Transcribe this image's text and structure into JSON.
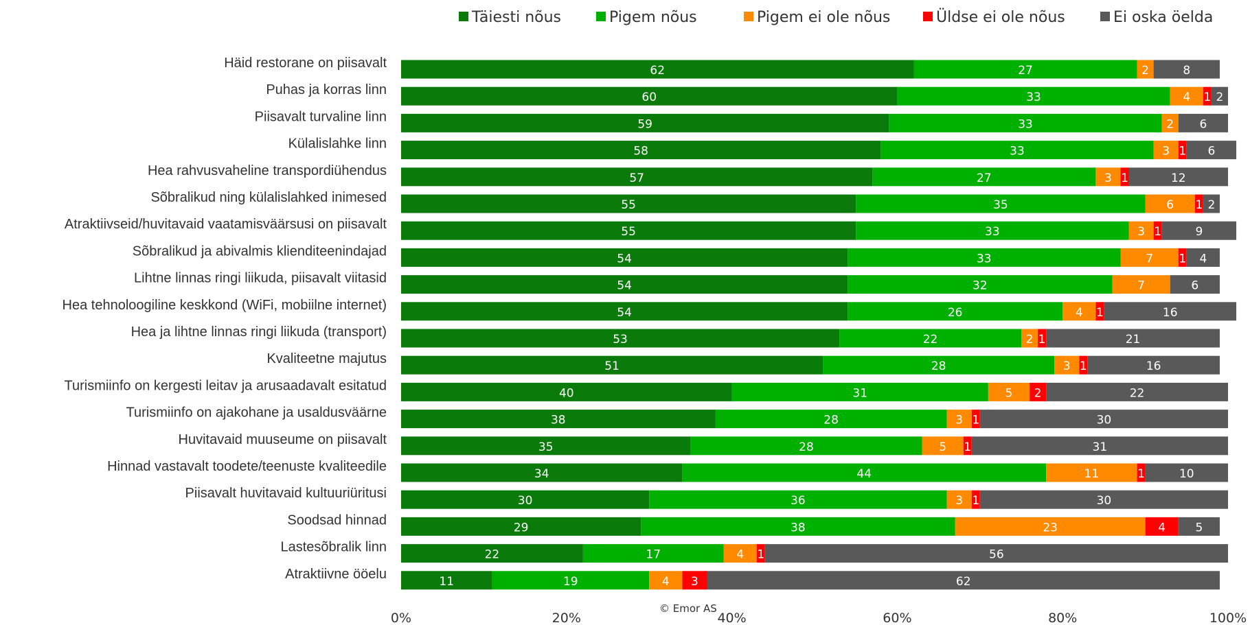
{
  "chart_data": {
    "type": "bar",
    "orientation": "horizontal",
    "stacked": true,
    "legend_position": "top-right",
    "xlim": [
      0,
      100
    ],
    "x_ticks": [
      "0%",
      "20%",
      "40%",
      "60%",
      "80%",
      "100%"
    ],
    "grid": false,
    "categories": [
      "Häid restorane on piisavalt",
      "Puhas ja korras linn",
      "Piisavalt turvaline linn",
      "Külalislahke linn",
      "Hea rahvusvaheline transpordiühendus",
      "Sõbralikud ning külalislahked inimesed",
      "Atraktiivseid/huvitavaid vaatamisväärsusi on piisavalt",
      "Sõbralikud ja abivalmis klienditeenindajad",
      "Lihtne linnas ringi liikuda, piisavalt viitasid",
      "Hea tehnoloogiline keskkond (WiFi, mobiilne internet)",
      "Hea ja lihtne linnas ringi liikuda (transport)",
      "Kvaliteetne majutus",
      "Turismiinfo on kergesti leitav ja arusaadavalt esitatud",
      "Turismiinfo on ajakohane ja usaldusväärne",
      "Huvitavaid muuseume on piisavalt",
      "Hinnad vastavalt toodete/teenuste kvaliteedile",
      "Piisavalt huvitavaid kultuuriüritusi",
      "Soodsad hinnad",
      "Lastesõbralik linn",
      "Atraktiivne ööelu"
    ],
    "series": [
      {
        "name": "Täiesti nõus",
        "color": "#0a7a0a",
        "label_color": "#ffffff",
        "values": [
          62,
          60,
          59,
          58,
          57,
          55,
          55,
          54,
          54,
          54,
          53,
          51,
          40,
          38,
          35,
          34,
          30,
          29,
          22,
          11
        ]
      },
      {
        "name": "Pigem nõus",
        "color": "#00b000",
        "label_color": "#ffffff",
        "values": [
          27,
          33,
          33,
          33,
          27,
          35,
          33,
          33,
          32,
          26,
          22,
          28,
          31,
          28,
          28,
          44,
          36,
          38,
          17,
          19
        ]
      },
      {
        "name": "Pigem ei ole nõus",
        "color": "#ff8a00",
        "label_color": "#ffffff",
        "values": [
          2,
          4,
          2,
          3,
          3,
          6,
          3,
          7,
          7,
          4,
          2,
          3,
          5,
          3,
          5,
          11,
          3,
          23,
          4,
          4
        ]
      },
      {
        "name": "Üldse ei ole nõus",
        "color": "#ff0000",
        "label_color": "#ffffff",
        "values": [
          0,
          1,
          0,
          1,
          1,
          1,
          1,
          1,
          0,
          1,
          1,
          1,
          2,
          1,
          1,
          1,
          1,
          4,
          1,
          3
        ]
      },
      {
        "name": "Ei oska öelda",
        "color": "#595959",
        "label_color": "#ffffff",
        "values": [
          8,
          2,
          6,
          6,
          12,
          2,
          9,
          4,
          6,
          16,
          21,
          16,
          22,
          30,
          31,
          10,
          30,
          5,
          56,
          62
        ]
      }
    ]
  },
  "copyright": "© Emor AS"
}
